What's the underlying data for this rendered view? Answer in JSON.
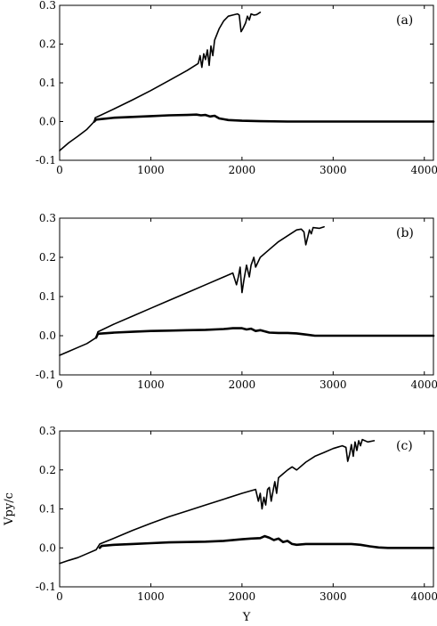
{
  "chart_data": [
    {
      "type": "line",
      "panel_label": "(a)",
      "xlim": [
        0,
        4100
      ],
      "ylim": [
        -0.1,
        0.3
      ],
      "x_ticks": [
        "0",
        "1000",
        "2000",
        "3000",
        "4000"
      ],
      "y_ticks": [
        "0.3",
        "0.2",
        "0.1",
        "0.0",
        "-0.1"
      ],
      "series": [
        {
          "values": [
            [
              0,
              -0.075
            ],
            [
              100,
              -0.055
            ],
            [
              200,
              -0.038
            ],
            [
              300,
              -0.02
            ],
            [
              380,
              0.0
            ],
            [
              390,
              0.01
            ],
            [
              430,
              0.014
            ],
            [
              600,
              0.033
            ],
            [
              800,
              0.056
            ],
            [
              1000,
              0.08
            ],
            [
              1200,
              0.106
            ],
            [
              1400,
              0.132
            ],
            [
              1520,
              0.15
            ],
            [
              1540,
              0.17
            ],
            [
              1560,
              0.14
            ],
            [
              1580,
              0.175
            ],
            [
              1600,
              0.16
            ],
            [
              1620,
              0.185
            ],
            [
              1640,
              0.145
            ],
            [
              1660,
              0.195
            ],
            [
              1680,
              0.17
            ],
            [
              1700,
              0.21
            ],
            [
              1750,
              0.24
            ],
            [
              1800,
              0.26
            ],
            [
              1850,
              0.272
            ],
            [
              1900,
              0.275
            ],
            [
              1950,
              0.278
            ],
            [
              1970,
              0.275
            ],
            [
              1990,
              0.232
            ],
            [
              2010,
              0.24
            ],
            [
              2040,
              0.255
            ],
            [
              2060,
              0.272
            ],
            [
              2080,
              0.262
            ],
            [
              2100,
              0.278
            ],
            [
              2130,
              0.275
            ],
            [
              2160,
              0.276
            ],
            [
              2200,
              0.282
            ]
          ]
        },
        {
          "values": [
            [
              380,
              0.0
            ],
            [
              400,
              0.005
            ],
            [
              600,
              0.01
            ],
            [
              800,
              0.012
            ],
            [
              1000,
              0.014
            ],
            [
              1200,
              0.016
            ],
            [
              1400,
              0.017
            ],
            [
              1500,
              0.018
            ],
            [
              1550,
              0.016
            ],
            [
              1600,
              0.017
            ],
            [
              1650,
              0.013
            ],
            [
              1700,
              0.015
            ],
            [
              1750,
              0.008
            ],
            [
              1800,
              0.006
            ],
            [
              1850,
              0.004
            ],
            [
              2000,
              0.002
            ],
            [
              2200,
              0.001
            ],
            [
              2500,
              0.0
            ],
            [
              3000,
              0.0
            ],
            [
              3500,
              0.0
            ],
            [
              4100,
              0.0
            ]
          ]
        }
      ]
    },
    {
      "type": "line",
      "panel_label": "(b)",
      "xlim": [
        0,
        4100
      ],
      "ylim": [
        -0.1,
        0.3
      ],
      "x_ticks": [
        "0",
        "1000",
        "2000",
        "3000",
        "4000"
      ],
      "y_ticks": [
        "0.3",
        "0.2",
        "0.1",
        "0.0",
        "-0.1"
      ],
      "series": [
        {
          "values": [
            [
              0,
              -0.05
            ],
            [
              100,
              -0.04
            ],
            [
              200,
              -0.03
            ],
            [
              300,
              -0.02
            ],
            [
              400,
              -0.005
            ],
            [
              420,
              0.01
            ],
            [
              600,
              0.03
            ],
            [
              800,
              0.05
            ],
            [
              1000,
              0.07
            ],
            [
              1200,
              0.09
            ],
            [
              1400,
              0.11
            ],
            [
              1600,
              0.13
            ],
            [
              1800,
              0.15
            ],
            [
              1900,
              0.16
            ],
            [
              1940,
              0.13
            ],
            [
              1960,
              0.15
            ],
            [
              1980,
              0.175
            ],
            [
              2000,
              0.11
            ],
            [
              2020,
              0.14
            ],
            [
              2050,
              0.18
            ],
            [
              2080,
              0.15
            ],
            [
              2100,
              0.18
            ],
            [
              2130,
              0.2
            ],
            [
              2150,
              0.175
            ],
            [
              2200,
              0.2
            ],
            [
              2300,
              0.22
            ],
            [
              2400,
              0.24
            ],
            [
              2500,
              0.255
            ],
            [
              2600,
              0.27
            ],
            [
              2650,
              0.272
            ],
            [
              2680,
              0.265
            ],
            [
              2700,
              0.232
            ],
            [
              2720,
              0.25
            ],
            [
              2740,
              0.27
            ],
            [
              2760,
              0.26
            ],
            [
              2780,
              0.276
            ],
            [
              2850,
              0.274
            ],
            [
              2900,
              0.278
            ]
          ]
        },
        {
          "values": [
            [
              400,
              -0.005
            ],
            [
              420,
              0.005
            ],
            [
              600,
              0.008
            ],
            [
              800,
              0.01
            ],
            [
              1000,
              0.012
            ],
            [
              1200,
              0.013
            ],
            [
              1400,
              0.014
            ],
            [
              1600,
              0.015
            ],
            [
              1800,
              0.017
            ],
            [
              1900,
              0.019
            ],
            [
              2000,
              0.019
            ],
            [
              2050,
              0.016
            ],
            [
              2100,
              0.018
            ],
            [
              2150,
              0.012
            ],
            [
              2200,
              0.014
            ],
            [
              2300,
              0.008
            ],
            [
              2400,
              0.007
            ],
            [
              2500,
              0.007
            ],
            [
              2600,
              0.006
            ],
            [
              2700,
              0.003
            ],
            [
              2800,
              0.0
            ],
            [
              3000,
              0.0
            ],
            [
              3500,
              0.0
            ],
            [
              4100,
              0.0
            ]
          ]
        }
      ]
    },
    {
      "type": "line",
      "panel_label": "(c)",
      "xlabel": "Y",
      "ylabel": "Vpy/c",
      "xlim": [
        0,
        4100
      ],
      "ylim": [
        -0.1,
        0.3
      ],
      "x_ticks": [
        "0",
        "1000",
        "2000",
        "3000",
        "4000"
      ],
      "y_ticks": [
        "0.3",
        "0.2",
        "0.1",
        "0.0",
        "-0.1"
      ],
      "series": [
        {
          "values": [
            [
              0,
              -0.04
            ],
            [
              100,
              -0.032
            ],
            [
              200,
              -0.025
            ],
            [
              300,
              -0.015
            ],
            [
              400,
              -0.005
            ],
            [
              440,
              0.01
            ],
            [
              600,
              0.025
            ],
            [
              800,
              0.045
            ],
            [
              1000,
              0.063
            ],
            [
              1200,
              0.08
            ],
            [
              1400,
              0.095
            ],
            [
              1600,
              0.11
            ],
            [
              1800,
              0.125
            ],
            [
              2000,
              0.14
            ],
            [
              2150,
              0.15
            ],
            [
              2180,
              0.12
            ],
            [
              2200,
              0.14
            ],
            [
              2220,
              0.1
            ],
            [
              2240,
              0.13
            ],
            [
              2260,
              0.11
            ],
            [
              2280,
              0.15
            ],
            [
              2300,
              0.155
            ],
            [
              2320,
              0.12
            ],
            [
              2340,
              0.145
            ],
            [
              2360,
              0.17
            ],
            [
              2380,
              0.14
            ],
            [
              2400,
              0.18
            ],
            [
              2450,
              0.19
            ],
            [
              2500,
              0.2
            ],
            [
              2550,
              0.208
            ],
            [
              2600,
              0.2
            ],
            [
              2700,
              0.22
            ],
            [
              2800,
              0.235
            ],
            [
              2900,
              0.245
            ],
            [
              3000,
              0.255
            ],
            [
              3100,
              0.262
            ],
            [
              3140,
              0.258
            ],
            [
              3160,
              0.222
            ],
            [
              3180,
              0.24
            ],
            [
              3200,
              0.265
            ],
            [
              3220,
              0.235
            ],
            [
              3240,
              0.272
            ],
            [
              3260,
              0.25
            ],
            [
              3280,
              0.275
            ],
            [
              3300,
              0.262
            ],
            [
              3320,
              0.278
            ],
            [
              3380,
              0.272
            ],
            [
              3450,
              0.275
            ]
          ]
        },
        {
          "values": [
            [
              440,
              0.0
            ],
            [
              460,
              0.005
            ],
            [
              600,
              0.008
            ],
            [
              800,
              0.01
            ],
            [
              1000,
              0.012
            ],
            [
              1200,
              0.014
            ],
            [
              1400,
              0.015
            ],
            [
              1600,
              0.016
            ],
            [
              1800,
              0.018
            ],
            [
              2000,
              0.022
            ],
            [
              2100,
              0.024
            ],
            [
              2200,
              0.025
            ],
            [
              2250,
              0.03
            ],
            [
              2300,
              0.026
            ],
            [
              2350,
              0.02
            ],
            [
              2400,
              0.024
            ],
            [
              2450,
              0.015
            ],
            [
              2500,
              0.018
            ],
            [
              2550,
              0.01
            ],
            [
              2600,
              0.008
            ],
            [
              2700,
              0.01
            ],
            [
              2800,
              0.01
            ],
            [
              3000,
              0.01
            ],
            [
              3100,
              0.01
            ],
            [
              3200,
              0.01
            ],
            [
              3300,
              0.008
            ],
            [
              3400,
              0.004
            ],
            [
              3500,
              0.001
            ],
            [
              3600,
              0.0
            ],
            [
              4100,
              0.0
            ]
          ]
        }
      ]
    }
  ]
}
